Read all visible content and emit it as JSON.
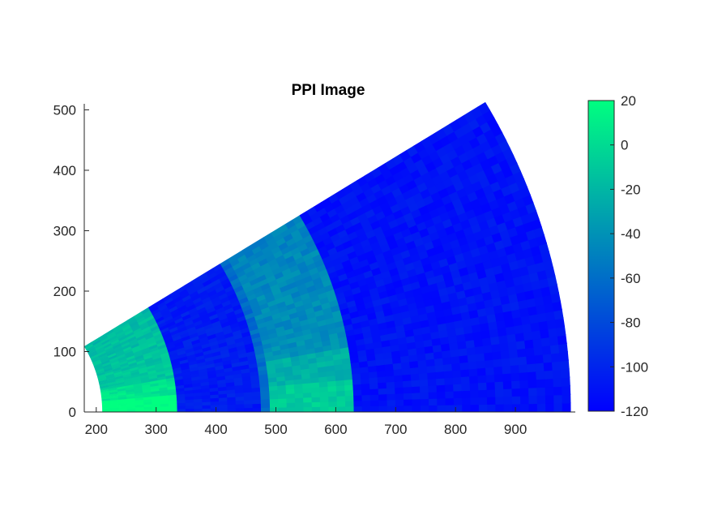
{
  "chart_data": {
    "type": "heatmap",
    "subtype": "ppi-sector",
    "title": "PPI Image",
    "xlabel": "",
    "ylabel": "",
    "xlim": [
      180,
      1000
    ],
    "ylim": [
      0,
      510
    ],
    "xticks": [
      200,
      300,
      400,
      500,
      600,
      700,
      800,
      900
    ],
    "yticks": [
      0,
      100,
      200,
      300,
      400,
      500
    ],
    "sector": {
      "range_min": 210,
      "range_max": 992,
      "azimuth_min_deg": 0,
      "azimuth_max_deg": 31
    },
    "range_bands": [
      {
        "range_from": 210,
        "range_to": 335,
        "base_value": 0,
        "description": "near clutter band",
        "hot_near_zero_azimuth": true
      },
      {
        "range_from": 335,
        "range_to": 475,
        "base_value": -105,
        "description": "low return"
      },
      {
        "range_from": 475,
        "range_to": 490,
        "base_value": -60,
        "description": "thin ring"
      },
      {
        "range_from": 490,
        "range_to": 630,
        "base_value": -30,
        "description": "second clutter band",
        "hot_near_zero_azimuth": true
      },
      {
        "range_from": 630,
        "range_to": 992,
        "base_value": -110,
        "description": "far low return"
      }
    ],
    "colorbar": {
      "min": -120,
      "max": 20,
      "ticks": [
        20,
        0,
        -20,
        -40,
        -60,
        -80,
        -100,
        -120
      ],
      "colors": {
        "low": "#0000ff",
        "mid": "#0080bf",
        "high": "#00ff80"
      }
    }
  }
}
